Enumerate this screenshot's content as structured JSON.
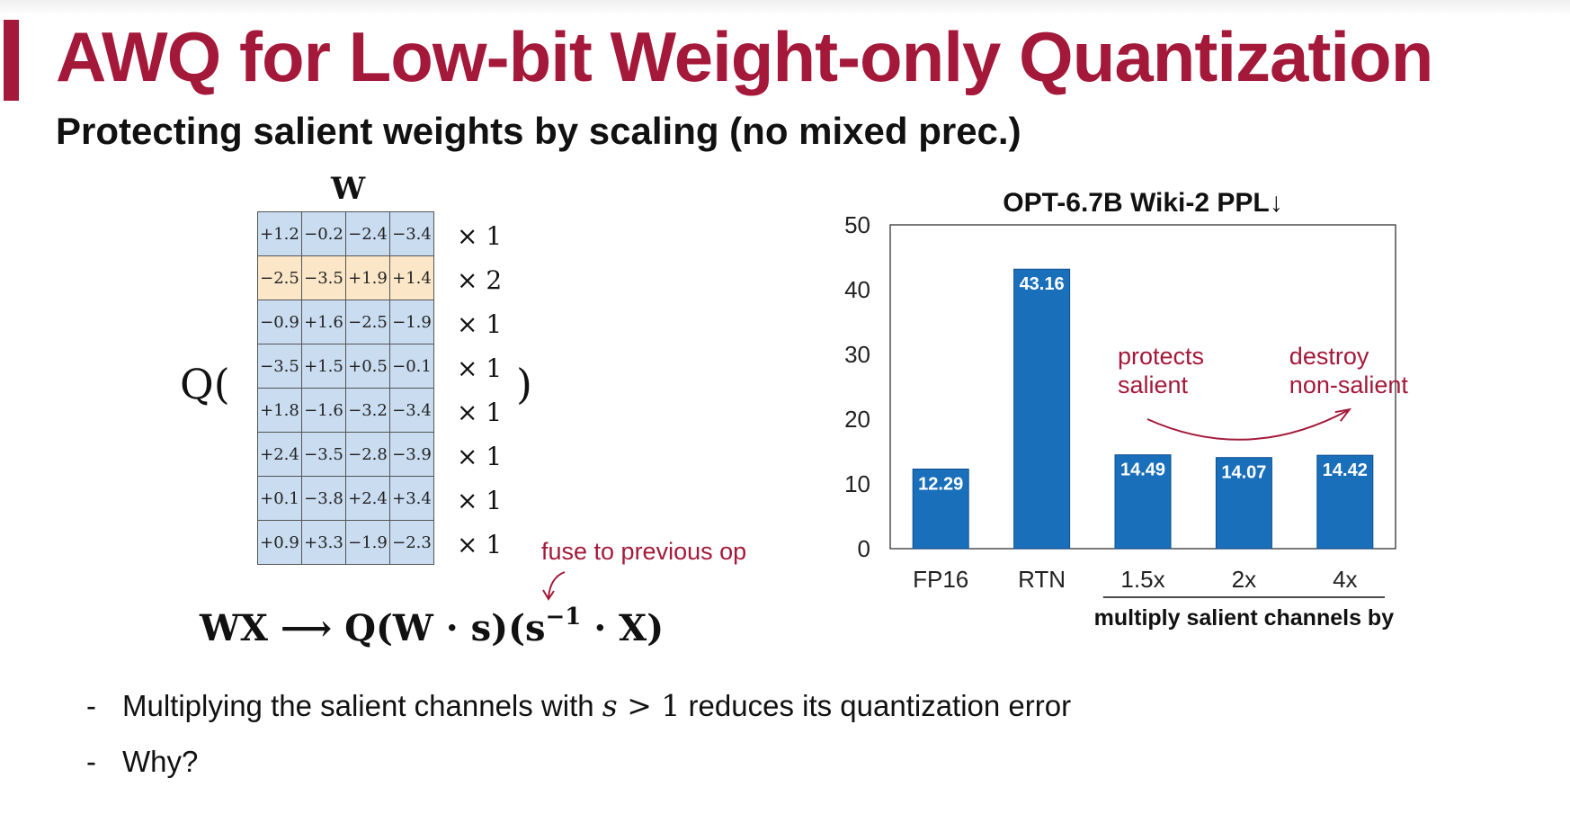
{
  "slide": {
    "title": "AWQ for Low-bit Weight-only Quantization",
    "subtitle": "Protecting salient weights by scaling (no mixed prec.)"
  },
  "illustration": {
    "matrix_label": "W",
    "q_open": "Q(",
    "q_close": ")",
    "matrix_rows": [
      [
        "+1.2",
        "−0.2",
        "−2.4",
        "−3.4"
      ],
      [
        "−2.5",
        "−3.5",
        "+1.9",
        "+1.4"
      ],
      [
        "−0.9",
        "+1.6",
        "−2.5",
        "−1.9"
      ],
      [
        "−3.5",
        "+1.5",
        "+0.5",
        "−0.1"
      ],
      [
        "+1.8",
        "−1.6",
        "−3.2",
        "−3.4"
      ],
      [
        "+2.4",
        "−3.5",
        "−2.8",
        "−3.9"
      ],
      [
        "+0.1",
        "−3.8",
        "+2.4",
        "+3.4"
      ],
      [
        "+0.9",
        "+3.3",
        "−1.9",
        "−2.3"
      ]
    ],
    "salient_row_index": 1,
    "row_scales": [
      "× 1",
      "× 2",
      "× 1",
      "× 1",
      "× 1",
      "× 1",
      "× 1",
      "× 1"
    ],
    "fuse_note": "fuse to previous op",
    "formula": {
      "lhs": "WX ⟶ ",
      "rhs_main": "Q(W · s)(s",
      "rhs_sup": "−1",
      "rhs_tail": " · X)"
    },
    "colors": {
      "normal_cell": "#c9dcf0",
      "salient_cell": "#fbe7c8",
      "accent": "#a4193a"
    }
  },
  "bullets": [
    {
      "dash": "-",
      "before": "Multiplying the salient channels with ",
      "math_var": "s",
      "math_rest": " > 1",
      "after": " reduces its quantization error"
    },
    {
      "dash": "-",
      "text": "Why?"
    }
  ],
  "chart_data": {
    "type": "bar",
    "title": "OPT-6.7B Wiki-2 PPL↓",
    "categories": [
      "FP16",
      "RTN",
      "1.5x",
      "2x",
      "4x"
    ],
    "values": [
      12.29,
      43.16,
      14.49,
      14.07,
      14.42
    ],
    "value_labels": [
      "12.29",
      "43.16",
      "14.49",
      "14.07",
      "14.42"
    ],
    "ylim": [
      0,
      50
    ],
    "yticks": [
      0,
      10,
      20,
      30,
      40,
      50
    ],
    "group_label": "multiply salient channels by",
    "group_categories": [
      "1.5x",
      "2x",
      "4x"
    ],
    "annotations": [
      {
        "line1": "protects",
        "line2": "salient"
      },
      {
        "line1": "destroy",
        "line2": "non-salient"
      }
    ],
    "bar_color": "#1a6fba",
    "annotation_color": "#a4193a",
    "grid": false
  }
}
